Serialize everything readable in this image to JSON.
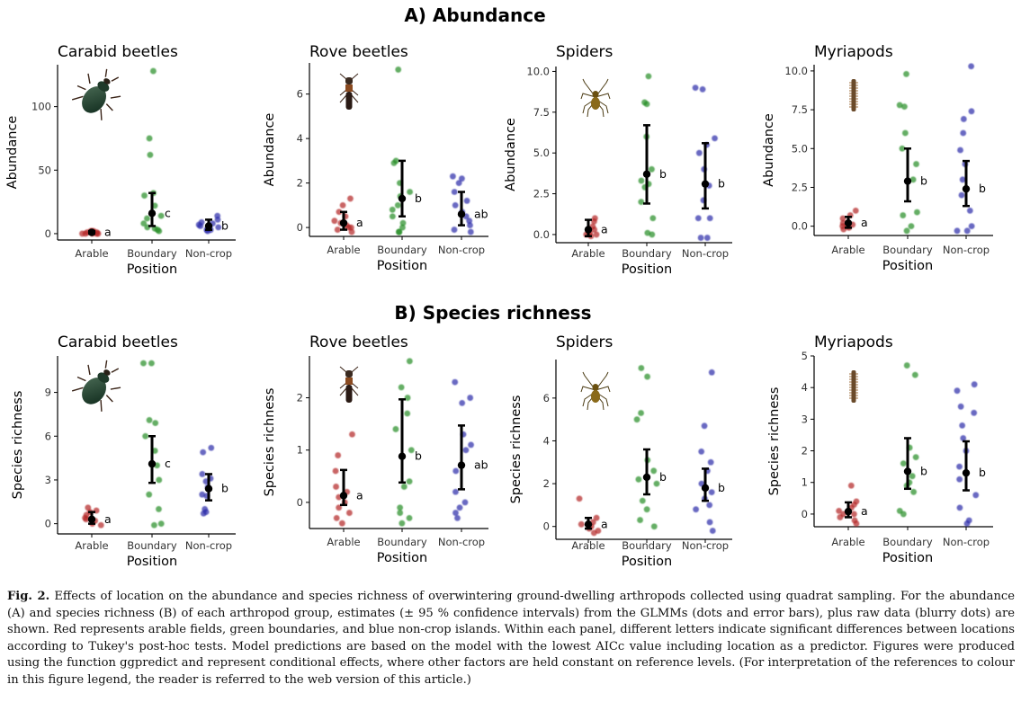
{
  "sections": [
    {
      "title": "A) Abundance",
      "row": 0
    },
    {
      "title": "B) Species richness",
      "row": 1
    }
  ],
  "xlabel": "Position",
  "categories": [
    "Arable",
    "Boundary",
    "Non-crop"
  ],
  "colors": {
    "Arable": "#b22222",
    "Boundary": "#228b22",
    "Non-crop": "#2a2aa8",
    "estimate": "#000000"
  },
  "chart_data": [
    {
      "type": "scatter",
      "panel": "Abundance - Carabid beetles",
      "title": "Carabid beetles",
      "ylabel": "Abundance",
      "icon": "beetle-icon",
      "ylim": [
        -5,
        133
      ],
      "yticks": [
        0,
        50,
        100
      ],
      "tick_labels": [
        "0",
        "50",
        "100"
      ],
      "estimates": [
        {
          "category": "Arable",
          "mean": 1,
          "lo": 0,
          "hi": 2,
          "letter": "a"
        },
        {
          "category": "Boundary",
          "mean": 16,
          "lo": 6,
          "hi": 32,
          "letter": "c"
        },
        {
          "category": "Non-crop",
          "mean": 6,
          "lo": 3,
          "hi": 11,
          "letter": "b"
        }
      ],
      "raw": {
        "Arable": [
          0,
          0,
          1,
          2,
          1,
          0,
          1,
          2,
          0,
          1,
          0,
          2
        ],
        "Boundary": [
          128,
          75,
          62,
          32,
          30,
          22,
          14,
          12,
          5,
          3,
          2,
          4,
          8
        ],
        "Non-crop": [
          14,
          11,
          9,
          8,
          6,
          5,
          5,
          3,
          3,
          2,
          4,
          7
        ]
      }
    },
    {
      "type": "scatter",
      "panel": "Abundance - Rove beetles",
      "title": "Rove beetles",
      "ylabel": "Abundance",
      "icon": "rove-beetle-icon",
      "ylim": [
        -0.4,
        7.4
      ],
      "yticks": [
        0,
        2,
        4,
        6
      ],
      "tick_labels": [
        "0",
        "2",
        "4",
        "6"
      ],
      "estimates": [
        {
          "category": "Arable",
          "mean": 0.2,
          "lo": -0.1,
          "hi": 0.7,
          "letter": "a"
        },
        {
          "category": "Boundary",
          "mean": 1.3,
          "lo": 0.5,
          "hi": 3.0,
          "letter": "b"
        },
        {
          "category": "Non-crop",
          "mean": 0.6,
          "lo": 0.1,
          "hi": 1.6,
          "letter": "ab"
        }
      ],
      "raw": {
        "Arable": [
          1.3,
          1.0,
          0.7,
          0.5,
          0.3,
          0.2,
          0.0,
          -0.1,
          -0.2,
          0.1,
          0.0
        ],
        "Boundary": [
          7.1,
          3.0,
          2.9,
          2.0,
          1.6,
          1.4,
          1.0,
          0.8,
          0.5,
          0.2,
          0.0,
          -0.2,
          -0.2
        ],
        "Non-crop": [
          2.3,
          2.2,
          2.0,
          1.6,
          1.2,
          1.0,
          0.7,
          0.3,
          0.1,
          -0.1,
          -0.2,
          0.5
        ]
      }
    },
    {
      "type": "scatter",
      "panel": "Abundance - Spiders",
      "title": "Spiders",
      "ylabel": "Abundance",
      "icon": "spider-icon",
      "ylim": [
        -0.5,
        10.3
      ],
      "yticks": [
        0.0,
        2.5,
        5.0,
        7.5,
        10.0
      ],
      "tick_labels": [
        "0.0",
        "2.5",
        "5.0",
        "7.5",
        "10.0"
      ],
      "estimates": [
        {
          "category": "Arable",
          "mean": 0.3,
          "lo": -0.1,
          "hi": 0.9,
          "letter": "a"
        },
        {
          "category": "Boundary",
          "mean": 3.7,
          "lo": 1.9,
          "hi": 6.7,
          "letter": "b"
        },
        {
          "category": "Non-crop",
          "mean": 3.1,
          "lo": 1.6,
          "hi": 5.6,
          "letter": "b"
        }
      ],
      "raw": {
        "Arable": [
          1.0,
          0.8,
          0.5,
          0.3,
          0.1,
          0.0,
          -0.1,
          0.2,
          0.0
        ],
        "Boundary": [
          9.7,
          8.1,
          8.0,
          6.0,
          4.0,
          3.3,
          3.1,
          2.9,
          2.0,
          1.0,
          0.1,
          0.0
        ],
        "Non-crop": [
          9.0,
          8.9,
          5.9,
          5.5,
          5.0,
          4.0,
          3.0,
          2.1,
          1.0,
          1.0,
          -0.2,
          -0.2
        ]
      }
    },
    {
      "type": "scatter",
      "panel": "Abundance - Myriapods",
      "title": "Myriapods",
      "ylabel": "Abundance",
      "icon": "myriapod-icon",
      "ylim": [
        -0.6,
        10.4
      ],
      "yticks": [
        0.0,
        2.5,
        5.0,
        7.5,
        10.0
      ],
      "tick_labels": [
        "0.0",
        "2.5",
        "5.0",
        "7.5",
        "10.0"
      ],
      "estimates": [
        {
          "category": "Arable",
          "mean": 0.2,
          "lo": -0.1,
          "hi": 0.6,
          "letter": "a"
        },
        {
          "category": "Boundary",
          "mean": 2.9,
          "lo": 1.6,
          "hi": 5.0,
          "letter": "b"
        },
        {
          "category": "Non-crop",
          "mean": 2.4,
          "lo": 1.3,
          "hi": 4.2,
          "letter": "b"
        }
      ],
      "raw": {
        "Arable": [
          1.0,
          0.7,
          0.5,
          0.2,
          0.0,
          -0.1,
          -0.2,
          0.1,
          0.0
        ],
        "Boundary": [
          9.8,
          7.8,
          7.7,
          6.0,
          5.0,
          4.0,
          3.0,
          0.9,
          0.7,
          0.0,
          -0.3
        ],
        "Non-crop": [
          10.3,
          7.4,
          6.9,
          6.0,
          4.9,
          4.0,
          3.0,
          2.0,
          1.0,
          0.0,
          -0.3,
          -0.3
        ]
      }
    },
    {
      "type": "scatter",
      "panel": "Species richness - Carabid beetles",
      "title": "Carabid beetles",
      "ylabel": "Species richness",
      "icon": "beetle-icon",
      "ylim": [
        -0.7,
        11.5
      ],
      "yticks": [
        0,
        3,
        6,
        9
      ],
      "tick_labels": [
        "0",
        "3",
        "6",
        "9"
      ],
      "estimates": [
        {
          "category": "Arable",
          "mean": 0.3,
          "lo": 0.0,
          "hi": 0.8,
          "letter": "a"
        },
        {
          "category": "Boundary",
          "mean": 4.1,
          "lo": 2.8,
          "hi": 6.0,
          "letter": "c"
        },
        {
          "category": "Non-crop",
          "mean": 2.4,
          "lo": 1.6,
          "hi": 3.4,
          "letter": "b"
        }
      ],
      "raw": {
        "Arable": [
          1.1,
          0.8,
          0.6,
          0.4,
          0.2,
          0.0,
          -0.1,
          0.3,
          0.9
        ],
        "Boundary": [
          11.0,
          11.0,
          7.1,
          6.9,
          6.0,
          5.0,
          4.0,
          3.0,
          2.0,
          1.0,
          0.0,
          -0.1
        ],
        "Non-crop": [
          5.2,
          4.9,
          3.4,
          3.1,
          2.5,
          2.0,
          1.9,
          1.0,
          0.8,
          0.7,
          2.9
        ]
      }
    },
    {
      "type": "scatter",
      "panel": "Species richness - Rove beetles",
      "title": "Rove beetles",
      "ylabel": "Species richness",
      "icon": "rove-beetle-icon",
      "ylim": [
        -0.5,
        2.8
      ],
      "yticks": [
        0,
        1,
        2
      ],
      "tick_labels": [
        "0",
        "1",
        "2"
      ],
      "estimates": [
        {
          "category": "Arable",
          "mean": 0.13,
          "lo": -0.05,
          "hi": 0.62,
          "letter": "a"
        },
        {
          "category": "Boundary",
          "mean": 0.88,
          "lo": 0.38,
          "hi": 1.97,
          "letter": "b"
        },
        {
          "category": "Non-crop",
          "mean": 0.71,
          "lo": 0.25,
          "hi": 1.47,
          "letter": "ab"
        }
      ],
      "raw": {
        "Arable": [
          1.3,
          0.9,
          0.6,
          0.3,
          0.2,
          0.1,
          0.0,
          -0.1,
          -0.2,
          -0.3,
          -0.4
        ],
        "Boundary": [
          2.7,
          2.2,
          2.0,
          1.7,
          1.4,
          1.0,
          0.4,
          0.3,
          -0.1,
          -0.2,
          -0.3,
          -0.4
        ],
        "Non-crop": [
          2.3,
          2.0,
          1.9,
          1.3,
          1.0,
          0.6,
          0.2,
          0.0,
          -0.1,
          -0.2,
          -0.3,
          1.1
        ]
      }
    },
    {
      "type": "scatter",
      "panel": "Species richness - Spiders",
      "title": "Spiders",
      "ylabel": "Species richness",
      "icon": "spider-icon",
      "ylim": [
        -0.6,
        7.8
      ],
      "yticks": [
        0,
        2,
        4,
        6
      ],
      "tick_labels": [
        "0",
        "2",
        "4",
        "6"
      ],
      "estimates": [
        {
          "category": "Arable",
          "mean": 0.1,
          "lo": -0.1,
          "hi": 0.4,
          "letter": "a"
        },
        {
          "category": "Boundary",
          "mean": 2.3,
          "lo": 1.5,
          "hi": 3.6,
          "letter": "b"
        },
        {
          "category": "Non-crop",
          "mean": 1.8,
          "lo": 1.2,
          "hi": 2.7,
          "letter": "b"
        }
      ],
      "raw": {
        "Arable": [
          1.3,
          0.4,
          0.2,
          0.0,
          -0.1,
          -0.2,
          -0.3,
          0.1
        ],
        "Boundary": [
          7.4,
          7.0,
          5.3,
          5.0,
          3.1,
          2.6,
          2.2,
          2.0,
          1.2,
          0.8,
          0.3,
          0.0
        ],
        "Non-crop": [
          7.2,
          4.7,
          3.5,
          3.0,
          2.6,
          2.0,
          1.6,
          1.3,
          0.8,
          0.2,
          -0.2,
          1.0
        ]
      }
    },
    {
      "type": "scatter",
      "panel": "Species richness - Myriapods",
      "title": "Myriapods",
      "ylabel": "Species richness",
      "icon": "myriapod-icon",
      "ylim": [
        -0.4,
        5.0
      ],
      "yticks": [
        0,
        1,
        2,
        3,
        4,
        5
      ],
      "tick_labels": [
        "0",
        "1",
        "2",
        "3",
        "4",
        "5"
      ],
      "estimates": [
        {
          "category": "Arable",
          "mean": 0.08,
          "lo": -0.1,
          "hi": 0.37,
          "letter": "a"
        },
        {
          "category": "Boundary",
          "mean": 1.35,
          "lo": 0.8,
          "hi": 2.4,
          "letter": "b"
        },
        {
          "category": "Non-crop",
          "mean": 1.3,
          "lo": 0.75,
          "hi": 2.3,
          "letter": "b"
        }
      ],
      "raw": {
        "Arable": [
          0.9,
          0.4,
          0.3,
          0.2,
          0.1,
          0.0,
          -0.1,
          -0.2,
          -0.3,
          0.0
        ],
        "Boundary": [
          4.7,
          4.4,
          2.1,
          1.8,
          1.6,
          1.2,
          1.0,
          0.9,
          0.7,
          0.1,
          0.0
        ],
        "Non-crop": [
          4.1,
          3.9,
          3.4,
          3.2,
          2.8,
          2.4,
          2.0,
          1.5,
          1.1,
          0.6,
          0.2,
          -0.2,
          -0.3
        ]
      }
    }
  ],
  "caption": {
    "label": "Fig. 2.",
    "text": "Effects of location on the abundance and species richness of overwintering ground-dwelling arthropods collected using quadrat sampling. For the abundance (A) and species richness (B) of each arthropod group, estimates (± 95 % confidence intervals) from the GLMMs (dots and error bars), plus raw data (blurry dots) are shown. Red represents arable fields, green boundaries, and blue non-crop islands. Within each panel, different letters indicate significant differences between locations according to Tukey's post-hoc tests. Model predictions are based on the model with the lowest AICc value including location as a predictor. Figures were produced using the function ggpredict and represent conditional effects, where other factors are held constant on reference levels. (For interpretation of the references to colour in this figure legend, the reader is referred to the web version of this article.)"
  }
}
